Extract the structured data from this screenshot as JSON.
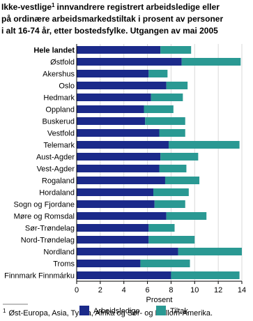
{
  "chart_data": {
    "type": "stacked-barh",
    "title_lines": [
      "Ikke-vestlige",
      "innvandrere registrert arbeidsledige eller",
      "på ordinære arbeidsmarkedstiltak i prosent av personer",
      "i alt 16-74 år, etter bostedsfylke. Utgangen av mai 2005"
    ],
    "title_mark": "1",
    "categories": [
      "Hele landet",
      "Østfold",
      "Akershus",
      "Oslo",
      "Hedmark",
      "Oppland",
      "Buskerud",
      "Vestfold",
      "Telemark",
      "Aust-Agder",
      "Vest-Agder",
      "Rogaland",
      "Hordaland",
      "Sogn og Fjordane",
      "Møre og Romsdal",
      "Sør-Trøndelag",
      "Nord-Trøndelag",
      "Nordland",
      "Troms",
      "Finnmark Finnmárku"
    ],
    "bold_category_index": 0,
    "series": [
      {
        "name": "Arbeidsledige",
        "color": "#1b2a8a",
        "values": [
          7.1,
          8.9,
          6.1,
          7.6,
          6.3,
          5.7,
          5.8,
          7.0,
          7.8,
          7.1,
          7.0,
          7.5,
          6.5,
          6.6,
          7.6,
          6.1,
          6.1,
          8.6,
          5.4,
          8.0
        ]
      },
      {
        "name": "Tiltak",
        "color": "#2a9993",
        "values": [
          2.6,
          5.0,
          1.6,
          1.8,
          2.7,
          2.5,
          3.4,
          2.2,
          6.0,
          3.2,
          2.3,
          2.9,
          3.0,
          2.6,
          3.4,
          2.2,
          3.9,
          5.4,
          4.2,
          5.8
        ]
      }
    ],
    "xlim": [
      0,
      14
    ],
    "xticks": [
      0,
      2,
      4,
      6,
      8,
      10,
      12,
      14
    ],
    "grid": true,
    "xlabel": "Prosent",
    "footnote_mark": "1",
    "footnote": "Øst-Europa, Asia, Tyrkia, Afrika og Sør- og Mellom-Amerika."
  }
}
